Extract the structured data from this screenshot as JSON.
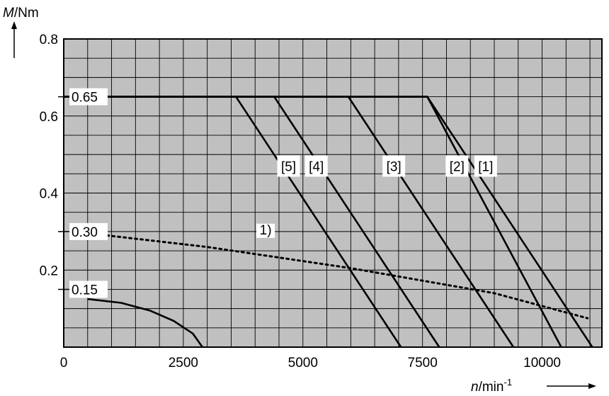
{
  "chart_data": {
    "type": "line",
    "y_axis_title": {
      "symbol": "M",
      "unit": "/Nm"
    },
    "x_axis_title": {
      "symbol": "n",
      "unit": "/min",
      "exponent": "-1"
    },
    "xlim": [
      0,
      11250
    ],
    "ylim": [
      0,
      0.8
    ],
    "x_ticks": [
      {
        "value": 0,
        "label": "0"
      },
      {
        "value": 2500,
        "label": "2500"
      },
      {
        "value": 5000,
        "label": "5000"
      },
      {
        "value": 7500,
        "label": "7500"
      },
      {
        "value": 10000,
        "label": "10000"
      }
    ],
    "y_ticks": [
      {
        "value": 0.2,
        "label": "0.2"
      },
      {
        "value": 0.4,
        "label": "0.4"
      },
      {
        "value": 0.6,
        "label": "0.6"
      },
      {
        "value": 0.8,
        "label": "0.8"
      }
    ],
    "grid": true,
    "grid_x_step": 500,
    "grid_y_step": 0.05,
    "background_color": "#c0c0c0",
    "line_color": "#000000",
    "level_markers": [
      {
        "value": 0.65,
        "label": "0.65"
      },
      {
        "value": 0.3,
        "label": "0.30"
      },
      {
        "value": 0.15,
        "label": "0.15"
      }
    ],
    "series": [
      {
        "name": "[1]",
        "style": "solid",
        "x": [
          0,
          7600,
          11050
        ],
        "y": [
          0.65,
          0.65,
          0
        ]
      },
      {
        "name": "[2]",
        "style": "solid",
        "x": [
          0,
          7600,
          10400
        ],
        "y": [
          0.65,
          0.65,
          0
        ]
      },
      {
        "name": "[3]",
        "style": "solid",
        "x": [
          0,
          5950,
          9400
        ],
        "y": [
          0.65,
          0.65,
          0
        ]
      },
      {
        "name": "[4]",
        "style": "solid",
        "x": [
          0,
          4400,
          7850
        ],
        "y": [
          0.65,
          0.65,
          0
        ]
      },
      {
        "name": "[5]",
        "style": "solid",
        "x": [
          0,
          3600,
          7050
        ],
        "y": [
          0.65,
          0.65,
          0
        ]
      },
      {
        "name": "1)",
        "style": "dotted",
        "x": [
          900,
          3000,
          6000,
          9000,
          10950
        ],
        "y": [
          0.29,
          0.26,
          0.205,
          0.14,
          0.075
        ]
      },
      {
        "name": "",
        "style": "solid",
        "x": [
          500,
          1200,
          1800,
          2300,
          2700,
          2900
        ],
        "y": [
          0.125,
          0.115,
          0.095,
          0.068,
          0.035,
          0
        ]
      }
    ],
    "series_labels": [
      {
        "text": "[5]",
        "x": 4700,
        "y": 0.47
      },
      {
        "text": "[4]",
        "x": 5280,
        "y": 0.47
      },
      {
        "text": "[3]",
        "x": 6900,
        "y": 0.47
      },
      {
        "text": "[2]",
        "x": 8220,
        "y": 0.47
      },
      {
        "text": "[1]",
        "x": 8820,
        "y": 0.47
      },
      {
        "text": "1)",
        "x": 4220,
        "y": 0.302
      }
    ]
  }
}
